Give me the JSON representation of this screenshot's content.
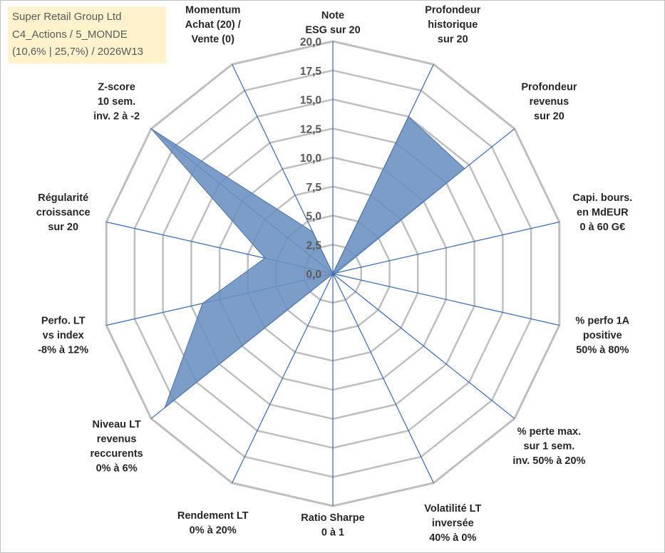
{
  "title_box": {
    "line1": "Super Retail Group Ltd",
    "line2": "C4_Actions / 5_MONDE",
    "line3": "(10,6% | 25,7%) / 2026W13"
  },
  "chart_data": {
    "type": "radar",
    "rmax": 20,
    "ticks": [
      "0,0",
      "2,5",
      "5,0",
      "7,5",
      "10,0",
      "12,5",
      "15,0",
      "17,5",
      "20,0"
    ],
    "axes": [
      {
        "label": [
          "Note",
          "ESG sur 20"
        ],
        "value": 0
      },
      {
        "label": [
          "Profondeur",
          "historique",
          "sur 20"
        ],
        "value": 15.0
      },
      {
        "label": [
          "Profondeur",
          "revenus",
          "sur 20"
        ],
        "value": 14.5
      },
      {
        "label": [
          "Capi. bours.",
          "en MdEUR",
          "0 à 60 G€"
        ],
        "value": 0.3
      },
      {
        "label": [
          "% perfo 1A",
          "positive",
          "50% à 80%"
        ],
        "value": 0
      },
      {
        "label": [
          "% perte max.",
          "sur 1 sem.",
          "inv. 50% à 20%"
        ],
        "value": 0
      },
      {
        "label": [
          "Volatilité LT",
          "inversée",
          "40% à 0%"
        ],
        "value": 0
      },
      {
        "label": [
          "Ratio Sharpe",
          "0 à 1"
        ],
        "value": 0
      },
      {
        "label": [
          "Rendement LT",
          "0% à 20%"
        ],
        "value": 0
      },
      {
        "label": [
          "Niveau LT",
          "revenus",
          "reccurents",
          "0% à 6%"
        ],
        "value": 18.5
      },
      {
        "label": [
          "Perfo. LT",
          "vs index",
          "-8% à 12%"
        ],
        "value": 11.5
      },
      {
        "label": [
          "Régularité",
          "croissance",
          "sur 20"
        ],
        "value": 6.0
      },
      {
        "label": [
          "Z-score",
          "10 sem.",
          "inv. 2 à -2"
        ],
        "value": 20.0
      },
      {
        "label": [
          "Momentum",
          "Achat (20) /",
          "Vente (0)"
        ],
        "value": 4.0
      }
    ],
    "colors": {
      "fill": "#6a8fc0",
      "stroke": "#4f73a8",
      "grid": "#bfbfbf",
      "spoke": "#3a66b0",
      "tick_text": "#595959",
      "label_text": "#262626"
    }
  }
}
